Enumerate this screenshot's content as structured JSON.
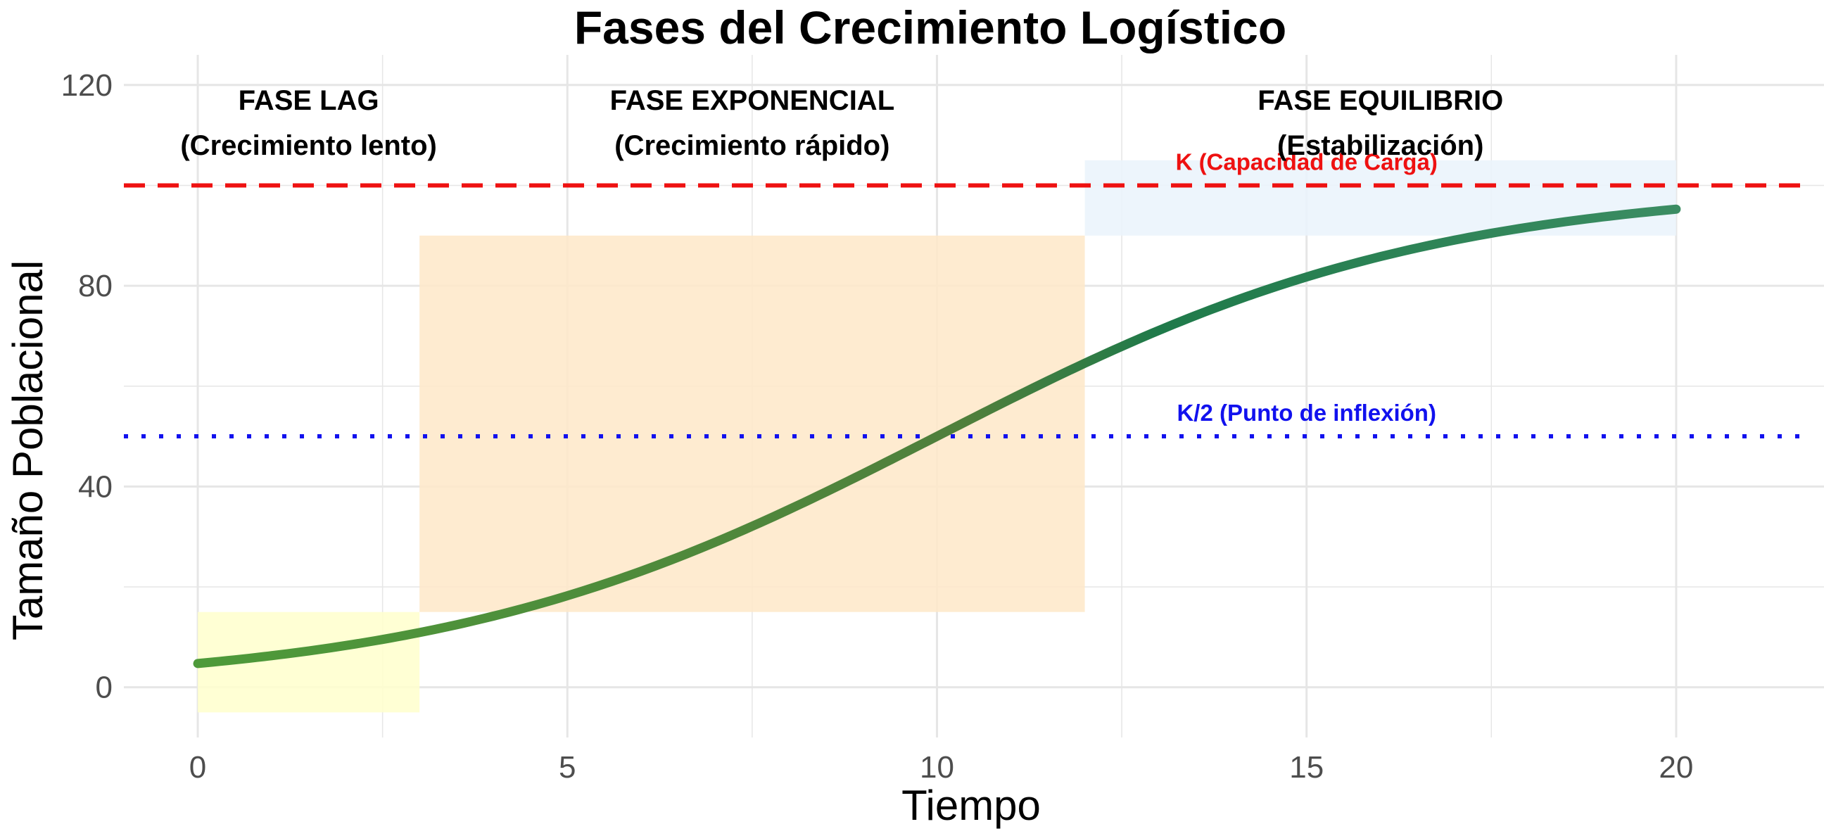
{
  "chart_data": {
    "type": "line",
    "title": "Fases del Crecimiento Logístico",
    "xlabel": "Tiempo",
    "ylabel": "Tamaño Poblacional",
    "xlim": [
      -1,
      22
    ],
    "ylim": [
      -10,
      126
    ],
    "x_ticks": [
      0,
      5,
      10,
      15,
      20
    ],
    "y_ticks": [
      0,
      40,
      80,
      120
    ],
    "grid": true,
    "logistic_params": {
      "K": 100,
      "r": 0.3,
      "t0": 10,
      "t_start": 0,
      "t_end": 20
    },
    "series": [
      {
        "x": [
          0,
          1,
          2,
          3,
          4,
          5,
          6,
          7,
          8,
          9,
          10,
          11,
          12,
          13,
          14,
          15,
          16,
          17,
          18,
          19,
          20
        ],
        "values": [
          4.7,
          6.3,
          8.3,
          10.9,
          14.2,
          18.2,
          23.1,
          28.9,
          35.4,
          42.6,
          50.0,
          57.4,
          64.6,
          71.1,
          76.9,
          81.8,
          85.8,
          89.1,
          91.7,
          93.7,
          95.3
        ]
      }
    ],
    "phases": [
      {
        "label": "FASE LAG",
        "sublabel": "(Crecimiento lento)",
        "x_range": [
          0,
          3
        ],
        "y_range": [
          -5,
          15
        ],
        "color": "#ffffcc",
        "label_x": 1.5
      },
      {
        "label": "FASE EXPONENCIAL",
        "sublabel": "(Crecimiento rápido)",
        "x_range": [
          3,
          12
        ],
        "y_range": [
          15,
          90
        ],
        "color": "#fee8c8",
        "label_x": 7.5
      },
      {
        "label": "FASE EQUILIBRIO",
        "sublabel": "(Estabilización)",
        "x_range": [
          12,
          20
        ],
        "y_range": [
          90,
          105
        ],
        "color": "#eaf3fb",
        "label_x": 16
      }
    ],
    "reference_lines": [
      {
        "y": 100,
        "label": "K (Capacidad de Carga)",
        "color": "#ee1111",
        "style": "dashed",
        "label_x": 15
      },
      {
        "y": 50,
        "label": "K/2 (Punto de inflexión)",
        "color": "#1111ee",
        "style": "dotted",
        "label_x": 15
      }
    ],
    "colors": {
      "grid": "#e6e6e6",
      "curve_start": "#4e9a3a",
      "curve_mid": "#1f7a4a",
      "curve_end": "#3f8f66"
    }
  }
}
